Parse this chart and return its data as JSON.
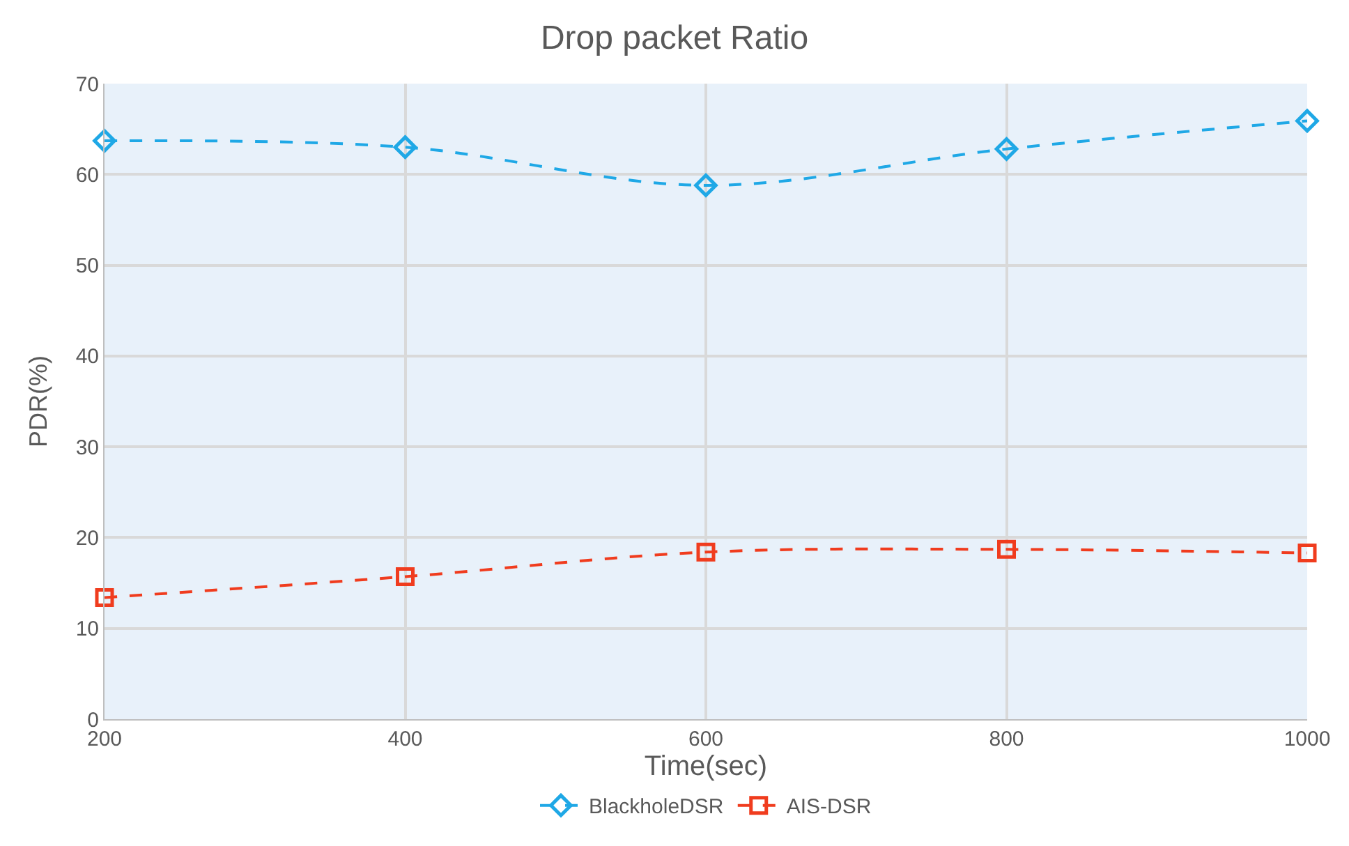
{
  "chart_data": {
    "type": "line",
    "title": "Drop packet Ratio",
    "xlabel": "Time(sec)",
    "ylabel": "PDR(%)",
    "x": [
      200,
      400,
      600,
      800,
      1000
    ],
    "series": [
      {
        "name": "BlackholeDSR",
        "color": "#1fa8e6",
        "marker": "diamond",
        "values": [
          63.7,
          63.0,
          58.8,
          62.8,
          65.9
        ]
      },
      {
        "name": "AIS-DSR",
        "color": "#f03c1e",
        "marker": "square",
        "values": [
          13.4,
          15.7,
          18.4,
          18.7,
          18.3
        ]
      }
    ],
    "xlim": [
      200,
      1000
    ],
    "xticks": [
      200,
      400,
      600,
      800,
      1000
    ],
    "ylim": [
      0,
      70
    ],
    "yticks": [
      0,
      10,
      20,
      30,
      40,
      50,
      60,
      70
    ],
    "grid": true,
    "legend": "bottom",
    "line_style": "dashed"
  }
}
